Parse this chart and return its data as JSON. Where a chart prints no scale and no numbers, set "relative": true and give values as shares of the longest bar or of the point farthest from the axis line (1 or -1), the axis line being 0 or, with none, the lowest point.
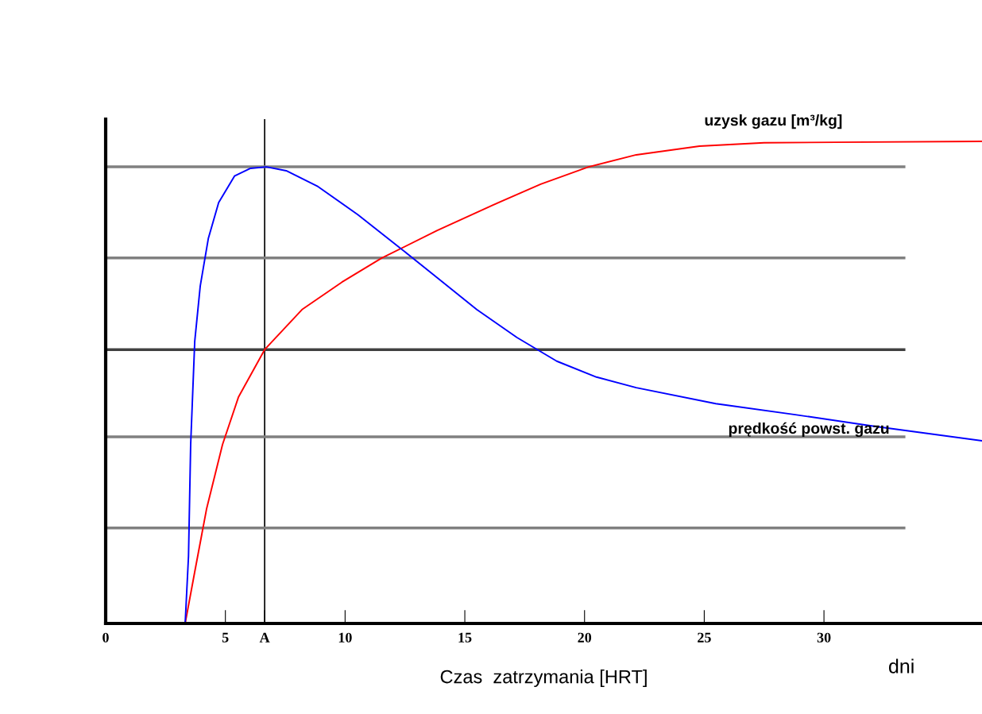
{
  "chart_data": {
    "type": "line",
    "relative": true,
    "xlabel": "Czas  zatrzymania [HRT]",
    "annotations": [
      "dni"
    ],
    "xlim": [
      0,
      36.6
    ],
    "xticks": [
      0,
      5,
      {
        "value": 6.64,
        "label": "A"
      },
      10,
      15,
      20,
      25,
      30
    ],
    "tick_labels": "x",
    "series": [
      {
        "name": "uzysk gazu [m³/kg]",
        "color": "#ff0000",
        "x": [
          3.32,
          3.72,
          4.22,
          4.88,
          5.55,
          6.64,
          8.2,
          9.87,
          11.53,
          13.85,
          16.18,
          18.17,
          20.17,
          22.16,
          24.8,
          27.5,
          30.5,
          36.6
        ],
        "values": [
          0,
          0.107,
          0.239,
          0.371,
          0.47,
          0.568,
          0.651,
          0.708,
          0.758,
          0.815,
          0.868,
          0.911,
          0.947,
          0.972,
          0.99,
          0.997,
          0.998,
          1.0
        ]
      },
      {
        "name": "prędkość powst. gazu",
        "color": "#0000ff",
        "x": [
          3.32,
          3.46,
          3.55,
          3.72,
          3.95,
          4.29,
          4.72,
          5.38,
          6.05,
          6.71,
          7.54,
          8.87,
          10.53,
          12.19,
          13.85,
          15.5,
          17.18,
          18.84,
          20.5,
          22.16,
          25.48,
          28.8,
          32.1,
          36.6
        ],
        "values": [
          0,
          0.14,
          0.371,
          0.585,
          0.7,
          0.799,
          0.873,
          0.928,
          0.944,
          0.947,
          0.939,
          0.906,
          0.848,
          0.783,
          0.717,
          0.651,
          0.593,
          0.544,
          0.511,
          0.489,
          0.456,
          0.433,
          0.409,
          0.379
        ]
      }
    ],
    "ref_lines": [
      {
        "axis": "x",
        "value": 6.64,
        "color": "#000000"
      },
      {
        "axis": "y",
        "value": 0.198,
        "color": "#808080"
      },
      {
        "axis": "y",
        "value": 0.387,
        "color": "#808080"
      },
      {
        "axis": "y",
        "value": 0.568,
        "color": "#404040"
      },
      {
        "axis": "y",
        "value": 0.758,
        "color": "#808080"
      },
      {
        "axis": "y",
        "value": 0.947,
        "color": "#808080"
      }
    ]
  }
}
